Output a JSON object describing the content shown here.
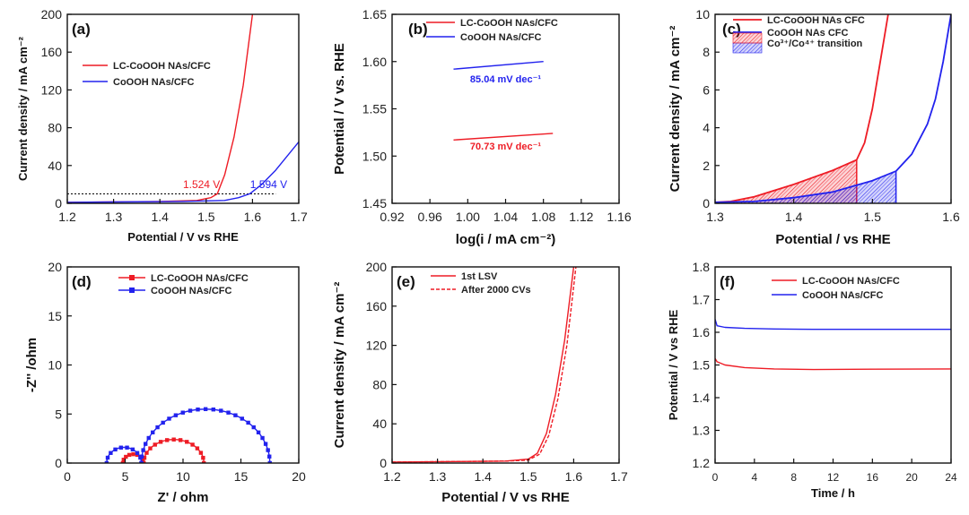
{
  "colors": {
    "red": "#ee1c25",
    "blue": "#2222ee",
    "axis": "#111111"
  },
  "chart_data": [
    {
      "id": "a",
      "type": "line",
      "label": "(a)",
      "xlabel": "Potential / V vs RHE",
      "ylabel": "Current density / mA cm⁻²",
      "xlim": [
        1.2,
        1.7
      ],
      "ylim": [
        0,
        200
      ],
      "xticks": [
        1.2,
        1.3,
        1.4,
        1.5,
        1.6,
        1.7
      ],
      "xtick_labels": [
        "1.2",
        "1.3",
        "1.4",
        "1.5",
        "1.6",
        "1.7"
      ],
      "yticks": [
        0,
        40,
        80,
        120,
        160,
        200
      ],
      "ytick_labels": [
        "0",
        "40",
        "80",
        "120",
        "160",
        "200"
      ],
      "legend": [
        "LC-CoOOH NAs/CFC",
        "CoOOH NAs/CFC"
      ],
      "series": [
        {
          "name": "LC-CoOOH NAs/CFC",
          "color": "red",
          "x": [
            1.2,
            1.4,
            1.48,
            1.51,
            1.524,
            1.54,
            1.56,
            1.58,
            1.6
          ],
          "y": [
            1,
            2,
            3,
            6,
            10,
            30,
            70,
            125,
            200
          ]
        },
        {
          "name": "CoOOH NAs/CFC",
          "color": "blue",
          "x": [
            1.2,
            1.45,
            1.54,
            1.57,
            1.594,
            1.62,
            1.65,
            1.7
          ],
          "y": [
            1,
            2,
            3,
            6,
            10,
            20,
            35,
            65
          ]
        }
      ],
      "refline_y": 10,
      "refline_x_end": 1.65,
      "annotations": [
        {
          "text": "1.524 V",
          "x": 1.49,
          "y": 16,
          "color": "red"
        },
        {
          "text": "1.594 V",
          "x": 1.635,
          "y": 16,
          "color": "blue"
        }
      ]
    },
    {
      "id": "b",
      "type": "line",
      "label": "(b)",
      "xlabel": "log(i / mA cm⁻²)",
      "ylabel": "Potential / V vs. RHE",
      "xlim": [
        0.92,
        1.16
      ],
      "ylim": [
        1.45,
        1.65
      ],
      "xticks": [
        0.92,
        0.96,
        1.0,
        1.04,
        1.08,
        1.12,
        1.16
      ],
      "xtick_labels": [
        "0.92",
        "0.96",
        "1.00",
        "1.04",
        "1.08",
        "1.12",
        "1.16"
      ],
      "yticks": [
        1.45,
        1.5,
        1.55,
        1.6,
        1.65
      ],
      "ytick_labels": [
        "1.45",
        "1.50",
        "1.55",
        "1.60",
        "1.65"
      ],
      "legend": [
        "LC-CoOOH NAs/CFC",
        "CoOOH NAs/CFC"
      ],
      "series": [
        {
          "name": "LC-CoOOH NAs/CFC",
          "color": "red",
          "x": [
            0.985,
            1.09
          ],
          "y": [
            1.517,
            1.524
          ]
        },
        {
          "name": "CoOOH NAs/CFC",
          "color": "blue",
          "x": [
            0.985,
            1.08
          ],
          "y": [
            1.592,
            1.6
          ]
        }
      ],
      "annotations": [
        {
          "text": "70.73 mV dec⁻¹",
          "x": 1.04,
          "y": 1.507,
          "color": "red"
        },
        {
          "text": "85.04 mV dec⁻¹",
          "x": 1.04,
          "y": 1.578,
          "color": "blue"
        }
      ]
    },
    {
      "id": "c",
      "type": "area",
      "label": "(c)",
      "xlabel": "Potential / vs RHE",
      "ylabel": "Current density / mA cm⁻²",
      "xlim": [
        1.3,
        1.6
      ],
      "ylim": [
        0,
        10
      ],
      "xticks": [
        1.3,
        1.4,
        1.5,
        1.6
      ],
      "xtick_labels": [
        "1.3",
        "1.4",
        "1.5",
        "1.6"
      ],
      "yticks": [
        0,
        2,
        4,
        6,
        8,
        10
      ],
      "ytick_labels": [
        "0",
        "2",
        "4",
        "6",
        "8",
        "10"
      ],
      "legend": [
        "LC-CoOOH NAs CFC",
        "CoOOH NAs CFC",
        "Co³⁺/Co⁴⁺ transition"
      ],
      "series": [
        {
          "name": "LC-CoOOH NAs CFC",
          "color": "red",
          "x": [
            1.3,
            1.32,
            1.35,
            1.4,
            1.45,
            1.48,
            1.49,
            1.5,
            1.51,
            1.52
          ],
          "y": [
            0.05,
            0.1,
            0.35,
            1.0,
            1.75,
            2.3,
            3.2,
            5.0,
            7.5,
            10
          ]
        },
        {
          "name": "CoOOH NAs CFC",
          "color": "blue",
          "x": [
            1.3,
            1.35,
            1.4,
            1.45,
            1.5,
            1.53,
            1.55,
            1.57,
            1.58,
            1.59,
            1.6
          ],
          "y": [
            0.05,
            0.1,
            0.3,
            0.6,
            1.2,
            1.7,
            2.6,
            4.2,
            5.5,
            7.5,
            10
          ]
        }
      ],
      "shaded_end": [
        1.48,
        1.53
      ]
    },
    {
      "id": "d",
      "type": "scatter",
      "label": "(d)",
      "xlabel": "Z' / ohm",
      "ylabel": "-Z'' /ohm",
      "xlim": [
        0,
        20
      ],
      "ylim": [
        0,
        20
      ],
      "xticks": [
        0,
        5,
        10,
        15,
        20
      ],
      "xtick_labels": [
        "0",
        "5",
        "10",
        "15",
        "20"
      ],
      "yticks": [
        0,
        5,
        10,
        15,
        20
      ],
      "ytick_labels": [
        "0",
        "5",
        "10",
        "15",
        "20"
      ],
      "legend": [
        "LC-CoOOH NAs/CFC",
        "CoOOH NAs/CFC"
      ],
      "series": [
        {
          "name": "LC-CoOOH NAs/CFC",
          "color": "red",
          "arcs": [
            {
              "x0": 4.8,
              "x1": 6.6,
              "h": 0.9,
              "n": 8
            },
            {
              "x0": 6.6,
              "x1": 11.8,
              "h": 2.4,
              "n": 14
            }
          ]
        },
        {
          "name": "CoOOH NAs/CFC",
          "color": "blue",
          "arcs": [
            {
              "x0": 3.4,
              "x1": 6.4,
              "h": 1.6,
              "n": 9
            },
            {
              "x0": 6.4,
              "x1": 17.5,
              "h": 5.5,
              "n": 26
            }
          ]
        }
      ]
    },
    {
      "id": "e",
      "type": "line",
      "label": "(e)",
      "xlabel": "Potential / V vs RHE",
      "ylabel": "Current density / mA cm⁻²",
      "xlim": [
        1.2,
        1.7
      ],
      "ylim": [
        0,
        200
      ],
      "xticks": [
        1.2,
        1.3,
        1.4,
        1.5,
        1.6,
        1.7
      ],
      "xtick_labels": [
        "1.2",
        "1.3",
        "1.4",
        "1.5",
        "1.6",
        "1.7"
      ],
      "yticks": [
        0,
        40,
        80,
        120,
        160,
        200
      ],
      "ytick_labels": [
        "0",
        "40",
        "80",
        "120",
        "160",
        "200"
      ],
      "legend": [
        "1st LSV",
        "After 2000 CVs"
      ],
      "series": [
        {
          "name": "1st LSV",
          "color": "red",
          "dash": false,
          "x": [
            1.2,
            1.45,
            1.5,
            1.52,
            1.54,
            1.56,
            1.58,
            1.6
          ],
          "y": [
            1,
            2,
            4,
            10,
            30,
            70,
            125,
            200
          ]
        },
        {
          "name": "After 2000 CVs",
          "color": "red",
          "dash": true,
          "x": [
            1.2,
            1.45,
            1.5,
            1.525,
            1.545,
            1.565,
            1.585,
            1.605
          ],
          "y": [
            1,
            2,
            3,
            9,
            28,
            65,
            120,
            200
          ]
        }
      ]
    },
    {
      "id": "f",
      "type": "line",
      "label": "(f)",
      "xlabel": "Time / h",
      "ylabel": "Potential / V vs RHE",
      "xlim": [
        0,
        24
      ],
      "ylim": [
        1.2,
        1.8
      ],
      "xticks": [
        0,
        4,
        8,
        12,
        16,
        20,
        24
      ],
      "xtick_labels": [
        "0",
        "4",
        "8",
        "12",
        "16",
        "20",
        "24"
      ],
      "yticks": [
        1.2,
        1.3,
        1.4,
        1.5,
        1.6,
        1.7,
        1.8
      ],
      "ytick_labels": [
        "1.2",
        "1.3",
        "1.4",
        "1.5",
        "1.6",
        "1.7",
        "1.8"
      ],
      "legend": [
        "LC-CoOOH NAs/CFC",
        "CoOOH NAs/CFC"
      ],
      "series": [
        {
          "name": "LC-CoOOH NAs/CFC",
          "color": "red",
          "x": [
            0,
            0.2,
            1,
            3,
            6,
            10,
            16,
            24
          ],
          "y": [
            1.52,
            1.51,
            1.5,
            1.492,
            1.488,
            1.486,
            1.487,
            1.488
          ]
        },
        {
          "name": "CoOOH NAs/CFC",
          "color": "blue",
          "x": [
            0,
            0.2,
            1,
            3,
            6,
            10,
            16,
            24
          ],
          "y": [
            1.64,
            1.62,
            1.615,
            1.612,
            1.61,
            1.609,
            1.609,
            1.609
          ]
        }
      ]
    }
  ]
}
